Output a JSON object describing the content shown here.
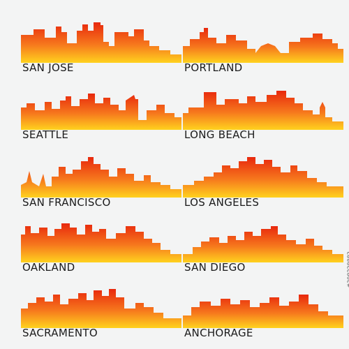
{
  "cities": [
    {
      "name": "SAN JOSE"
    },
    {
      "name": "PORTLAND"
    },
    {
      "name": "SEATTLE"
    },
    {
      "name": "LONG BEACH"
    },
    {
      "name": "SAN FRANCISCO"
    },
    {
      "name": "LOS ANGELES"
    },
    {
      "name": "OAKLAND"
    },
    {
      "name": "SAN DIEGO"
    },
    {
      "name": "SACRAMENTO"
    },
    {
      "name": "ANCHORAGE"
    }
  ],
  "stock_id": "#398228882",
  "colors": {
    "top": "#e8280d",
    "mid": "#f6781d",
    "bottom": "#ffd21e",
    "text": "#1b1b1b",
    "background": "#f3f4f4"
  }
}
